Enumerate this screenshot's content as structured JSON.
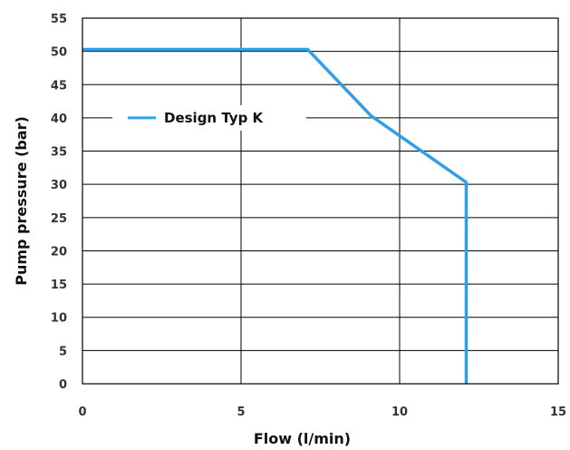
{
  "chart_data": {
    "type": "line",
    "xlabel": "Flow (l/min)",
    "ylabel": "Pump pressure (bar)",
    "xlim": [
      0,
      15
    ],
    "ylim": [
      0,
      55
    ],
    "xticks": [
      0,
      5,
      10,
      15
    ],
    "yticks": [
      0,
      5,
      10,
      15,
      20,
      25,
      30,
      35,
      40,
      45,
      50,
      55
    ],
    "grid": true,
    "legend_position": "center-left",
    "series": [
      {
        "name": "Design Typ K",
        "color": "#2f9fe6",
        "x": [
          0,
          7.1,
          9.1,
          12.1,
          12.1
        ],
        "y": [
          50.3,
          50.3,
          40.3,
          30.3,
          0
        ]
      }
    ]
  }
}
